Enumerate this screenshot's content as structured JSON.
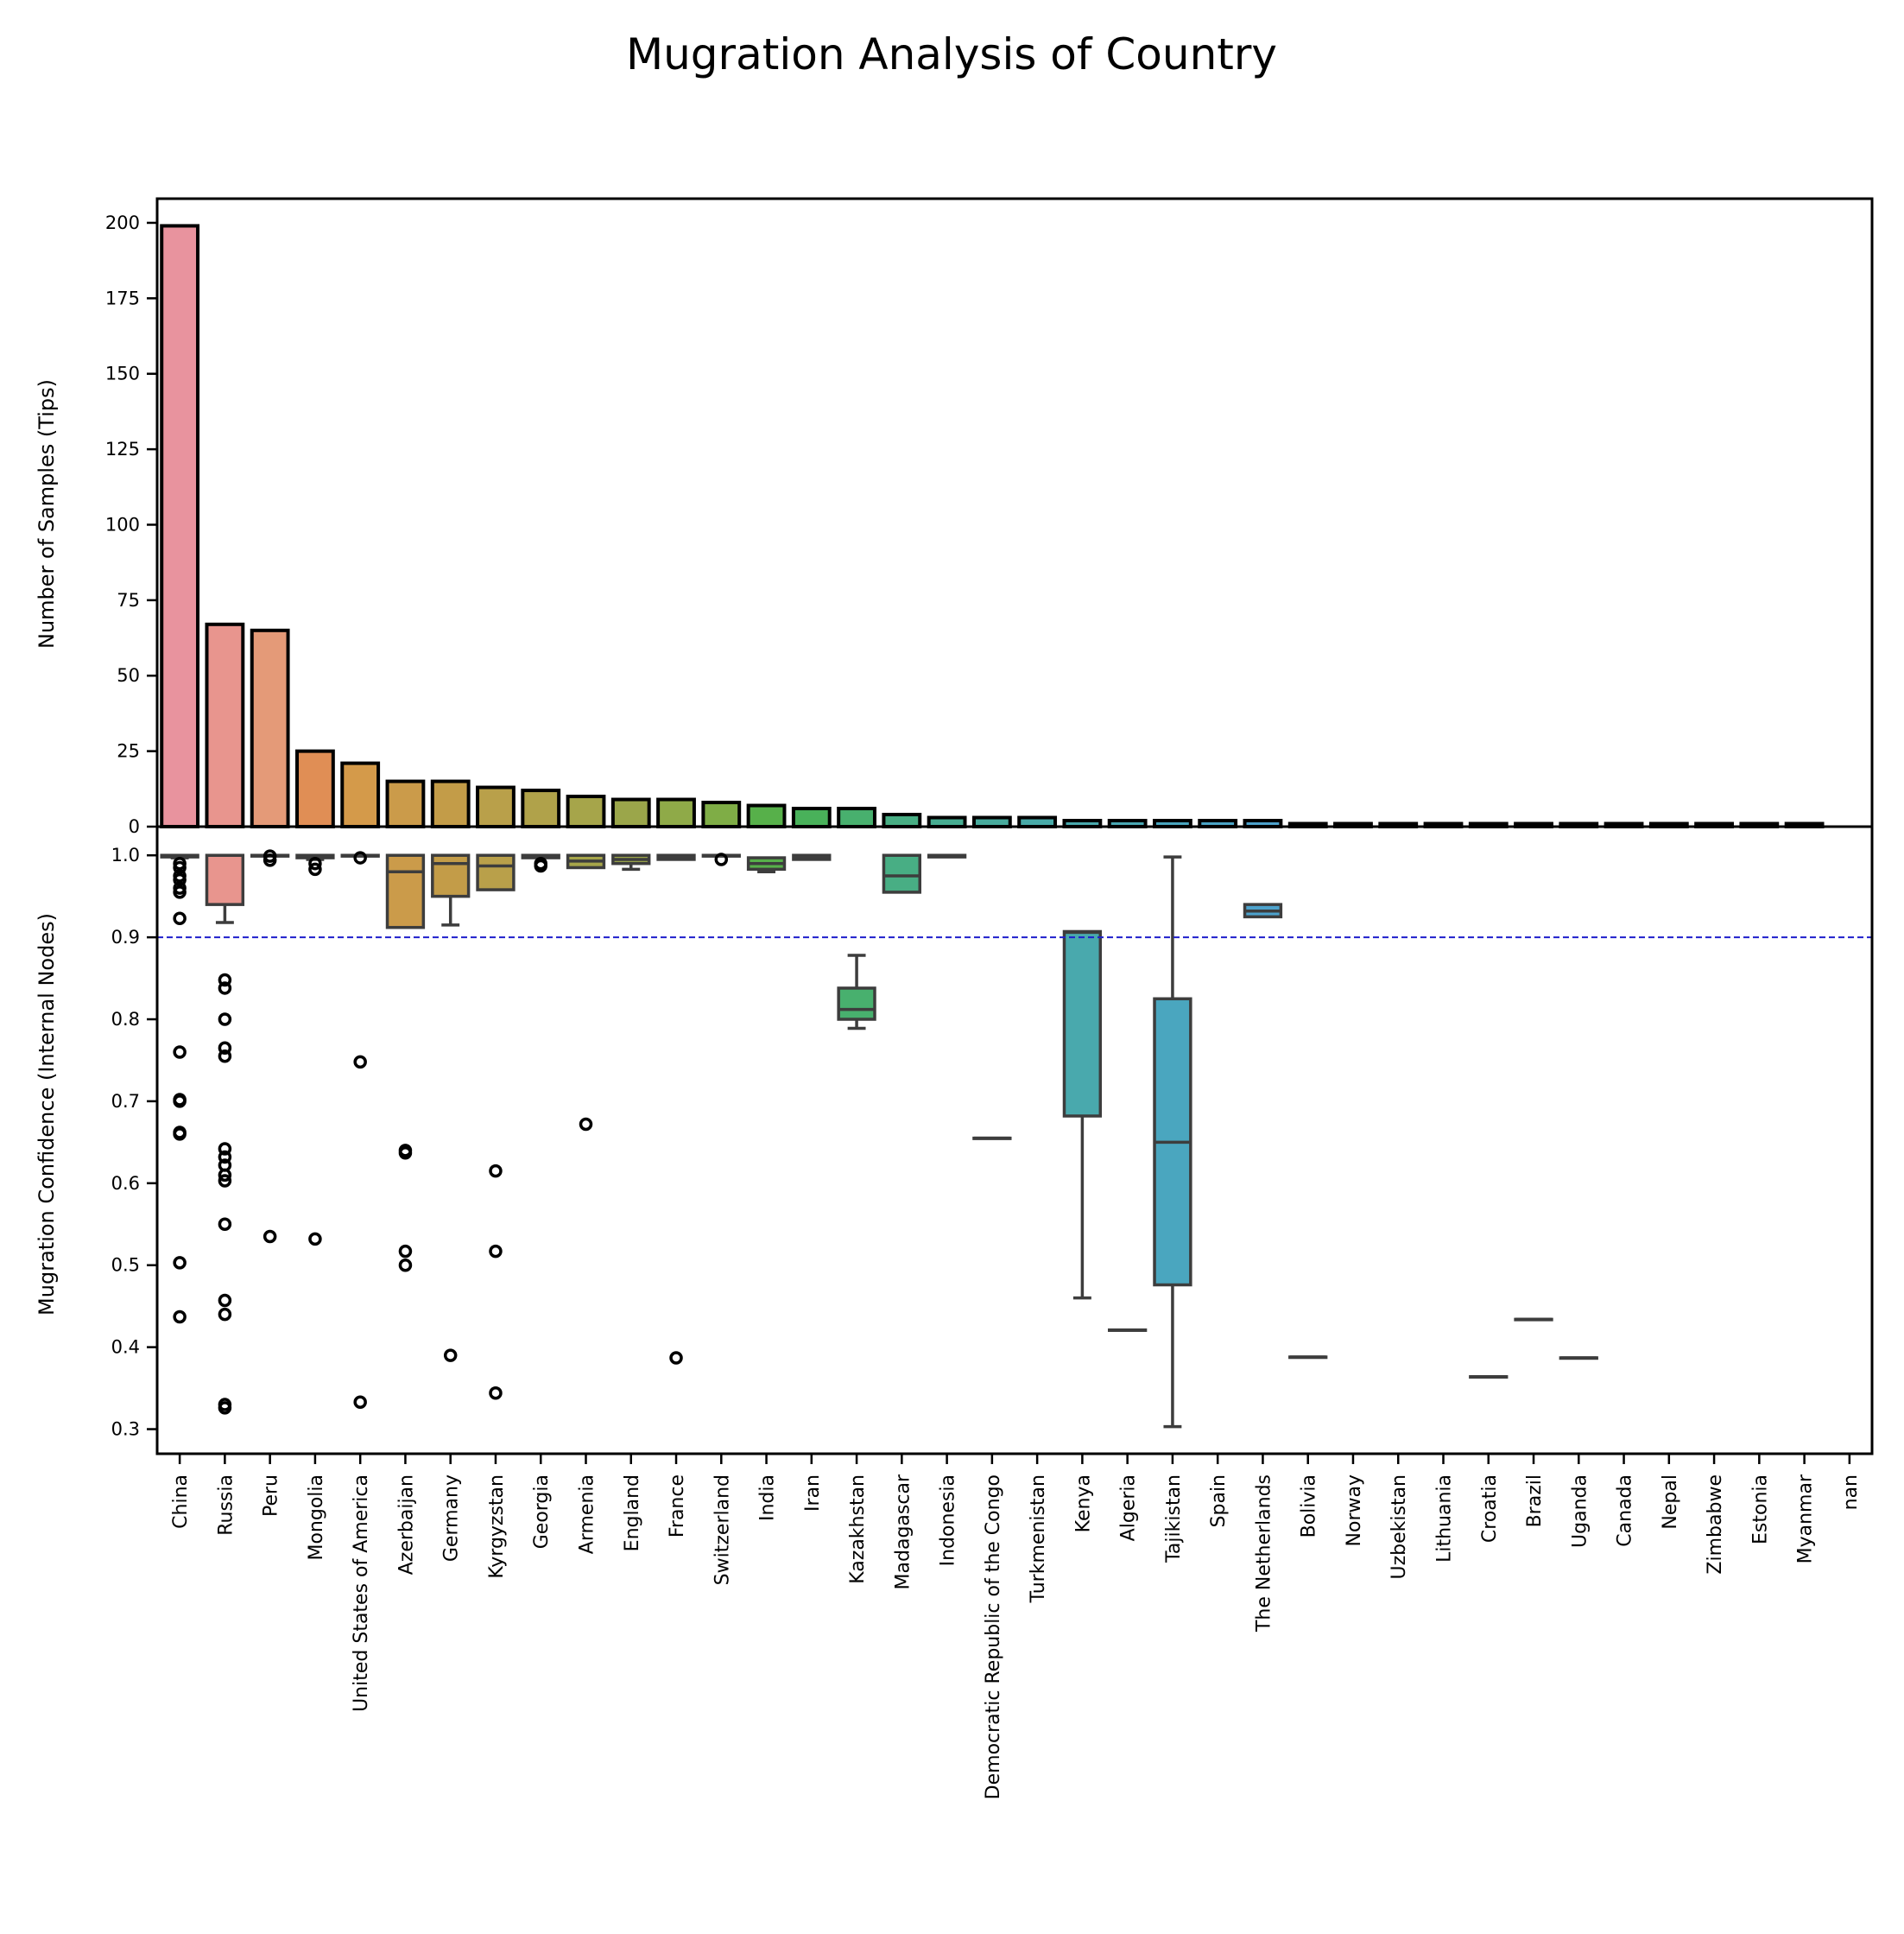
{
  "chart_data": {
    "title": "Mugration Analysis of Country",
    "categories": [
      "China",
      "Russia",
      "Peru",
      "Mongolia",
      "United States of America",
      "Azerbaijan",
      "Germany",
      "Kyrgyzstan",
      "Georgia",
      "Armenia",
      "England",
      "France",
      "Switzerland",
      "India",
      "Iran",
      "Kazakhstan",
      "Madagascar",
      "Indonesia",
      "Democratic Republic of the Congo",
      "Turkmenistan",
      "Kenya",
      "Algeria",
      "Tajikistan",
      "Spain",
      "The Netherlands",
      "Bolivia",
      "Norway",
      "Uzbekistan",
      "Lithuania",
      "Croatia",
      "Brazil",
      "Uganda",
      "Canada",
      "Nepal",
      "Zimbabwe",
      "Estonia",
      "Myanmar",
      "nan"
    ],
    "colors": [
      "#e8939e",
      "#e8958e",
      "#e49a78",
      "#e08e55",
      "#d49a4a",
      "#cb9b4a",
      "#c39c48",
      "#b9a04a",
      "#b0a24a",
      "#a6a54a",
      "#9ba64a",
      "#8faa48",
      "#7fad46",
      "#57b04a",
      "#49b15a",
      "#48b06e",
      "#48ae84",
      "#47ad92",
      "#48ab9d",
      "#48aaa8",
      "#49a9ad",
      "#4aa8b4",
      "#4aa6bf",
      "#4ba4c6",
      "#4da2cc",
      "#5a9fd6",
      "#6d9be0",
      "#8595e6",
      "#9b90ec",
      "#ad8aee",
      "#bf84ee",
      "#cd7fe9",
      "#d97ce3",
      "#e178d6",
      "#e77ac8",
      "#ea7bba",
      "#ec7eab",
      "#ee82a0"
    ],
    "bar_panel": {
      "type": "bar",
      "ylabel": "Number of Samples (Tips)",
      "ylim": [
        0,
        208
      ],
      "yticks": [
        0,
        25,
        50,
        75,
        100,
        125,
        150,
        175,
        200
      ],
      "values": [
        199,
        67,
        65,
        25,
        21,
        15,
        15,
        13,
        12,
        10,
        9,
        9,
        8,
        7,
        6,
        6,
        4,
        3,
        3,
        3,
        2,
        2,
        2,
        2,
        2,
        1,
        1,
        1,
        1,
        1,
        1,
        1,
        1,
        1,
        1,
        1,
        1,
        0
      ]
    },
    "box_panel": {
      "type": "box",
      "ylabel": "Mugration Confidence (Internal Nodes)",
      "ylim": [
        0.27,
        1.035
      ],
      "yticks": [
        0.3,
        0.4,
        0.5,
        0.6,
        0.7,
        0.8,
        0.9,
        1.0
      ],
      "threshold_line": 0.9,
      "boxes": [
        {
          "q1": 0.998,
          "med": 0.999,
          "q3": 1.0,
          "wlo": 0.997,
          "whi": 1.0,
          "fliers": [
            0.99,
            0.985,
            0.975,
            0.97,
            0.96,
            0.955,
            0.923,
            0.76,
            0.702,
            0.7,
            0.662,
            0.66,
            0.503,
            0.437
          ]
        },
        {
          "q1": 0.94,
          "med": 1.0,
          "q3": 1.0,
          "wlo": 0.918,
          "whi": 1.0,
          "fliers": [
            0.848,
            0.838,
            0.8,
            0.765,
            0.755,
            0.642,
            0.632,
            0.622,
            0.61,
            0.603,
            0.55,
            0.457,
            0.44,
            0.33,
            0.326
          ]
        },
        {
          "q1": 0.999,
          "med": 1.0,
          "q3": 1.0,
          "wlo": 0.999,
          "whi": 1.0,
          "fliers": [
            0.999,
            0.994,
            0.535
          ]
        },
        {
          "q1": 0.997,
          "med": 0.999,
          "q3": 1.0,
          "wlo": 0.995,
          "whi": 1.0,
          "fliers": [
            0.99,
            0.983,
            0.532
          ]
        },
        {
          "q1": 0.999,
          "med": 1.0,
          "q3": 1.0,
          "wlo": 0.999,
          "whi": 1.0,
          "fliers": [
            0.997,
            0.748,
            0.333
          ]
        },
        {
          "q1": 0.912,
          "med": 0.98,
          "q3": 1.0,
          "wlo": 0.912,
          "whi": 1.0,
          "fliers": [
            0.64,
            0.637,
            0.517,
            0.5
          ]
        },
        {
          "q1": 0.95,
          "med": 0.99,
          "q3": 1.0,
          "wlo": 0.915,
          "whi": 1.0,
          "fliers": [
            0.39
          ]
        },
        {
          "q1": 0.958,
          "med": 0.987,
          "q3": 1.0,
          "wlo": 0.958,
          "whi": 1.0,
          "fliers": [
            0.615,
            0.517,
            0.344
          ]
        },
        {
          "q1": 0.997,
          "med": 0.999,
          "q3": 1.0,
          "wlo": 0.997,
          "whi": 1.0,
          "fliers": [
            0.99,
            0.987
          ]
        },
        {
          "q1": 0.985,
          "med": 0.993,
          "q3": 1.0,
          "wlo": 0.985,
          "whi": 1.0,
          "fliers": [
            0.672
          ]
        },
        {
          "q1": 0.99,
          "med": 0.995,
          "q3": 1.0,
          "wlo": 0.983,
          "whi": 1.0,
          "fliers": []
        },
        {
          "q1": 0.995,
          "med": 0.998,
          "q3": 1.0,
          "wlo": 0.995,
          "whi": 1.0,
          "fliers": [
            0.387
          ]
        },
        {
          "q1": 0.999,
          "med": 1.0,
          "q3": 1.0,
          "wlo": 0.999,
          "whi": 1.0,
          "fliers": [
            0.995
          ]
        },
        {
          "q1": 0.983,
          "med": 0.99,
          "q3": 0.997,
          "wlo": 0.98,
          "whi": 0.997,
          "fliers": []
        },
        {
          "q1": 0.995,
          "med": 0.998,
          "q3": 1.0,
          "wlo": 0.995,
          "whi": 1.0,
          "fliers": []
        },
        {
          "q1": 0.8,
          "med": 0.812,
          "q3": 0.838,
          "wlo": 0.789,
          "whi": 0.878,
          "fliers": []
        },
        {
          "q1": 0.955,
          "med": 0.975,
          "q3": 1.0,
          "wlo": 0.955,
          "whi": 1.0,
          "fliers": []
        },
        {
          "q1": 0.998,
          "med": 0.999,
          "q3": 1.0,
          "wlo": 0.998,
          "whi": 1.0,
          "fliers": []
        },
        {
          "q1": 0.655,
          "med": 0.655,
          "q3": 0.655,
          "wlo": 0.655,
          "whi": 0.655,
          "fliers": []
        },
        null,
        {
          "q1": 0.682,
          "med": 0.906,
          "q3": 0.907,
          "wlo": 0.46,
          "whi": 0.907,
          "fliers": []
        },
        {
          "q1": 0.421,
          "med": 0.421,
          "q3": 0.421,
          "wlo": 0.421,
          "whi": 0.421,
          "fliers": []
        },
        {
          "q1": 0.476,
          "med": 0.65,
          "q3": 0.825,
          "wlo": 0.303,
          "whi": 0.998,
          "fliers": []
        },
        null,
        {
          "q1": 0.925,
          "med": 0.932,
          "q3": 0.94,
          "wlo": 0.925,
          "whi": 0.94,
          "fliers": []
        },
        {
          "q1": 0.388,
          "med": 0.388,
          "q3": 0.388,
          "wlo": 0.388,
          "whi": 0.388,
          "fliers": []
        },
        null,
        null,
        null,
        {
          "q1": 0.364,
          "med": 0.364,
          "q3": 0.364,
          "wlo": 0.364,
          "whi": 0.364,
          "fliers": []
        },
        {
          "q1": 0.434,
          "med": 0.434,
          "q3": 0.434,
          "wlo": 0.434,
          "whi": 0.434,
          "fliers": []
        },
        {
          "q1": 0.387,
          "med": 0.387,
          "q3": 0.387,
          "wlo": 0.387,
          "whi": 0.387,
          "fliers": []
        },
        null,
        null,
        null,
        null,
        null,
        null
      ]
    }
  }
}
